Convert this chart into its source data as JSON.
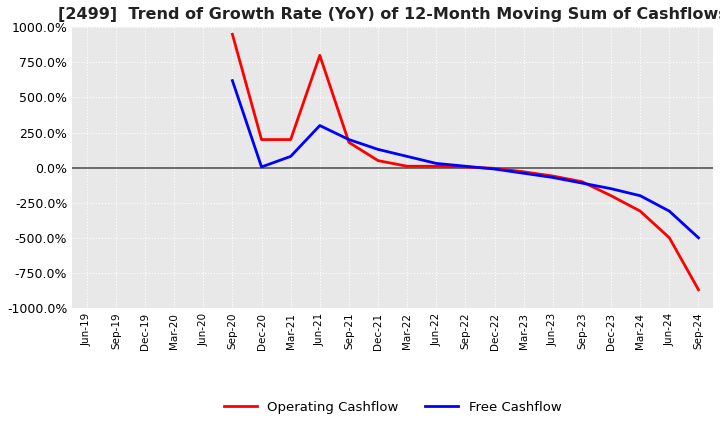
{
  "title": "[2499]  Trend of Growth Rate (YoY) of 12-Month Moving Sum of Cashflows",
  "title_fontsize": 11.5,
  "ylim": [
    -1000,
    1000
  ],
  "yticks": [
    -1000,
    -750,
    -500,
    -250,
    0,
    250,
    500,
    750,
    1000
  ],
  "background_color": "#ffffff",
  "plot_bg_color": "#e8e8e8",
  "grid_color": "#ffffff",
  "operating_color": "#ff0000",
  "free_color": "#0000ff",
  "legend_labels": [
    "Operating Cashflow",
    "Free Cashflow"
  ],
  "xtick_labels": [
    "Jun-19",
    "Sep-19",
    "Dec-19",
    "Mar-20",
    "Jun-20",
    "Sep-20",
    "Dec-20",
    "Mar-21",
    "Jun-21",
    "Sep-21",
    "Dec-21",
    "Mar-22",
    "Jun-22",
    "Sep-22",
    "Dec-22",
    "Mar-23",
    "Jun-23",
    "Sep-23",
    "Dec-23",
    "Mar-24",
    "Jun-24",
    "Sep-24"
  ],
  "operating_cf": [
    null,
    null,
    null,
    null,
    null,
    950,
    200,
    200,
    800,
    180,
    50,
    10,
    10,
    5,
    -5,
    -30,
    -60,
    -100,
    -200,
    -310,
    -500,
    -870
  ],
  "free_cf": [
    null,
    null,
    null,
    null,
    null,
    null,
    null,
    null,
    null,
    null,
    null,
    null,
    null,
    null,
    null,
    null,
    null,
    null,
    null,
    null,
    null,
    null
  ],
  "free_cf2": [
    null,
    null,
    null,
    null,
    null,
    620,
    5,
    80,
    300,
    200,
    130,
    80,
    30,
    10,
    -10,
    -40,
    -70,
    -110,
    -150,
    -200,
    -310,
    -500
  ]
}
